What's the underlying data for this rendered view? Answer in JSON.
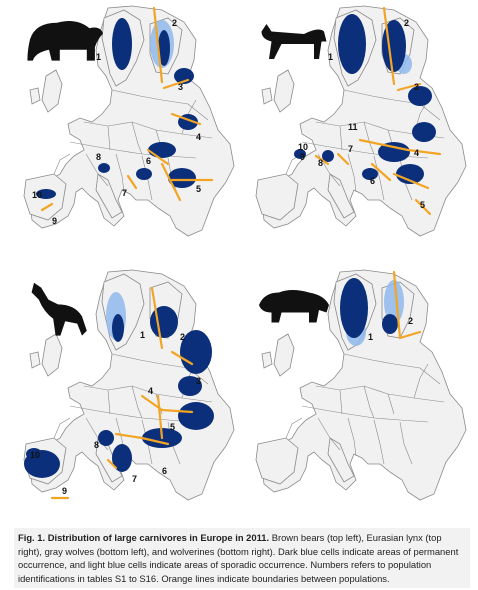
{
  "colors": {
    "land": "#f1f1f1",
    "border": "#8a8a8a",
    "dark_blue": "#0b2f7a",
    "light_blue": "#8fb8ec",
    "orange": "#f2a524",
    "silhouette": "#111111"
  },
  "figure": {
    "panels": [
      {
        "animal": "brown-bear",
        "icon": "bear-silhouette-icon",
        "labels": [
          "1",
          "2",
          "3",
          "4",
          "5",
          "6",
          "7",
          "8",
          "9",
          "10"
        ]
      },
      {
        "animal": "eurasian-lynx",
        "icon": "lynx-silhouette-icon",
        "labels": [
          "1",
          "2",
          "3",
          "4",
          "5",
          "6",
          "7",
          "8",
          "9",
          "10",
          "11"
        ]
      },
      {
        "animal": "gray-wolf",
        "icon": "wolf-silhouette-icon",
        "labels": [
          "1",
          "2",
          "3",
          "4",
          "5",
          "6",
          "7",
          "8",
          "9",
          "10"
        ]
      },
      {
        "animal": "wolverine",
        "icon": "wolverine-silhouette-icon",
        "labels": [
          "1",
          "2"
        ]
      }
    ]
  },
  "caption": {
    "title": "Fig. 1. Distribution of large carnivores in Europe in 2011.",
    "body": "Brown bears (top left), Eurasian lynx (top right), gray wolves (bottom left), and wolverines (bottom right). Dark blue cells indicate areas of permanent occurrence, and light blue cells indicate areas of sporadic occurrence. Numbers refers to population identifications in tables S1 to S16. Orange lines indicate boundaries between populations."
  }
}
